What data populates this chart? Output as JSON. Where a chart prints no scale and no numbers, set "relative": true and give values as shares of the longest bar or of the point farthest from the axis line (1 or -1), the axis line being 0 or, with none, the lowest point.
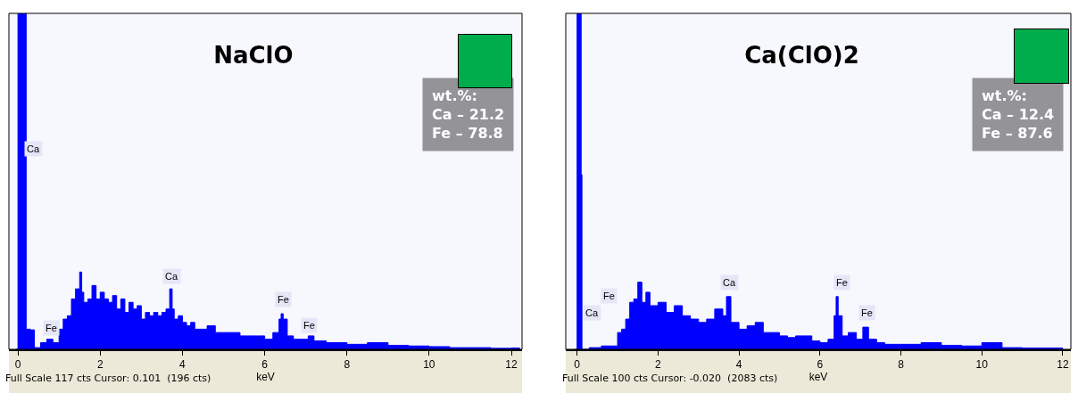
{
  "chart_data": [
    {
      "type": "area",
      "title": "NaClO",
      "xlabel": "keV",
      "relative": true,
      "xlim": [
        -0.22,
        12.26
      ],
      "xticks": [
        0,
        2,
        4,
        6,
        8,
        10,
        12
      ],
      "x": [
        -0.05,
        0.0,
        0.05,
        0.15,
        0.2,
        0.3,
        0.4,
        0.55,
        0.7,
        0.85,
        1.0,
        1.1,
        1.2,
        1.3,
        1.4,
        1.5,
        1.55,
        1.6,
        1.7,
        1.8,
        1.9,
        2.0,
        2.1,
        2.2,
        2.3,
        2.4,
        2.5,
        2.6,
        2.7,
        2.8,
        2.9,
        3.0,
        3.1,
        3.2,
        3.3,
        3.4,
        3.5,
        3.6,
        3.69,
        3.75,
        3.8,
        3.9,
        4.0,
        4.1,
        4.2,
        4.3,
        4.5,
        4.6,
        4.8,
        5.0,
        5.2,
        5.4,
        5.6,
        5.8,
        6.0,
        6.2,
        6.35,
        6.4,
        6.45,
        6.55,
        6.7,
        7.0,
        7.06,
        7.2,
        7.5,
        8.0,
        8.5,
        9.0,
        9.5,
        10.0,
        10.5,
        11.0,
        11.5,
        12.0,
        12.2
      ],
      "series": [
        {
          "color": "#0000ff",
          "values": [
            0,
            1,
            1,
            1,
            0.06,
            0.058,
            0.005,
            0.02,
            0.03,
            0.02,
            0.06,
            0.09,
            0.1,
            0.15,
            0.18,
            0.23,
            0.17,
            0.14,
            0.15,
            0.19,
            0.15,
            0.17,
            0.15,
            0.14,
            0.16,
            0.12,
            0.15,
            0.11,
            0.14,
            0.12,
            0.13,
            0.09,
            0.11,
            0.1,
            0.11,
            0.1,
            0.11,
            0.12,
            0.18,
            0.12,
            0.09,
            0.1,
            0.08,
            0.07,
            0.08,
            0.06,
            0.06,
            0.07,
            0.05,
            0.05,
            0.05,
            0.04,
            0.04,
            0.04,
            0.03,
            0.05,
            0.09,
            0.106,
            0.09,
            0.04,
            0.03,
            0.03,
            0.04,
            0.025,
            0.02,
            0.015,
            0.02,
            0.012,
            0.01,
            0.008,
            0.005,
            0.005,
            0.003,
            0.004,
            0
          ]
        }
      ],
      "annotations": [
        "wt.%:\nCa – 21.2\nFe – 78.8",
        "Full Scale 117 cts Cursor: 0.101  (196 cts)",
        "Ca",
        "Fe",
        "Ca",
        "Fe",
        "Fe"
      ]
    },
    {
      "type": "area",
      "title": "Ca(ClO)2",
      "xlabel": "keV",
      "relative": true,
      "xlim": [
        -0.28,
        12.2
      ],
      "xticks": [
        0,
        2,
        4,
        6,
        8,
        10,
        12
      ],
      "x": [
        -0.05,
        0.0,
        0.05,
        0.1,
        0.12,
        0.3,
        0.6,
        0.8,
        1.0,
        1.1,
        1.2,
        1.3,
        1.4,
        1.5,
        1.6,
        1.7,
        1.8,
        2.0,
        2.2,
        2.4,
        2.6,
        2.8,
        3.0,
        3.2,
        3.4,
        3.6,
        3.69,
        3.8,
        4.0,
        4.2,
        4.4,
        4.6,
        4.8,
        5.0,
        5.2,
        5.4,
        5.6,
        5.8,
        6.0,
        6.2,
        6.35,
        6.4,
        6.45,
        6.55,
        6.7,
        6.9,
        7.06,
        7.2,
        7.4,
        7.6,
        8.0,
        8.5,
        9.0,
        9.5,
        10.0,
        10.5,
        11.0,
        12.0
      ],
      "series": [
        {
          "color": "#0000ff",
          "values": [
            0,
            1,
            1,
            0.52,
            0,
            0.005,
            0.01,
            0.01,
            0.05,
            0.06,
            0.09,
            0.14,
            0.15,
            0.2,
            0.14,
            0.17,
            0.13,
            0.14,
            0.11,
            0.13,
            0.1,
            0.09,
            0.08,
            0.09,
            0.12,
            0.1,
            0.157,
            0.08,
            0.06,
            0.07,
            0.08,
            0.05,
            0.05,
            0.04,
            0.035,
            0.04,
            0.04,
            0.025,
            0.02,
            0.03,
            0.1,
            0.157,
            0.1,
            0.04,
            0.05,
            0.03,
            0.066,
            0.03,
            0.02,
            0.015,
            0.015,
            0.02,
            0.012,
            0.01,
            0.02,
            0.005,
            0.004,
            0.003
          ]
        }
      ],
      "annotations": [
        "wt.%:\nCa – 12.4\nFe – 87.6",
        "Full Scale 100 cts Cursor: -0.020  (2083 cts)",
        "Ca",
        "Fe",
        "Ca",
        "Fe",
        "Fe"
      ]
    }
  ]
}
